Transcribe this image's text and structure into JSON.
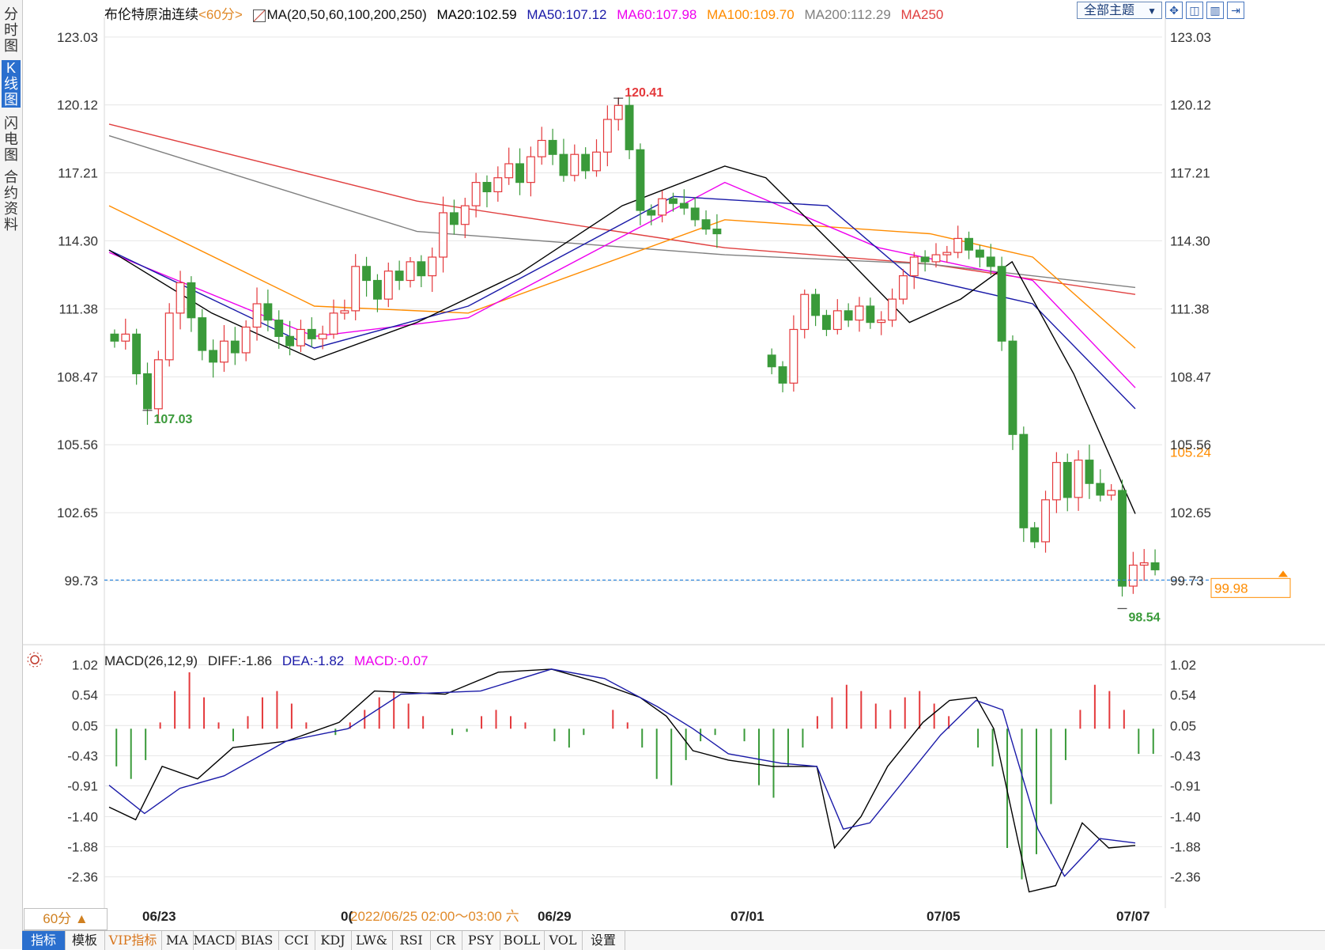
{
  "sidebar": {
    "tabs": [
      {
        "label": "分时图",
        "active": false
      },
      {
        "label": "K线图",
        "active": true
      },
      {
        "label": "闪电图",
        "active": false
      },
      {
        "label": "合约资料",
        "active": false
      }
    ]
  },
  "header": {
    "title": "布伦特原油连续",
    "period_tag": "<60分>",
    "ma_label": "MA(20,50,60,100,200,250)",
    "ma20": "MA20:102.59",
    "ma50": "MA50:107.12",
    "ma60": "MA60:107.98",
    "ma100": "MA100:109.70",
    "ma200": "MA200:112.29",
    "ma250": "MA250",
    "theme_select": "全部主题",
    "icons": [
      "settings-icon",
      "layout-1-icon",
      "layout-2-icon",
      "layout-3-icon"
    ]
  },
  "colors": {
    "up": "#e4393c",
    "down": "#3a9a3a",
    "ma20": "#000000",
    "ma50": "#1a1aa8",
    "ma60": "#ee00ee",
    "ma100": "#ff8c00",
    "ma200": "#808080",
    "ma250": "#e04040",
    "grid": "#e6e6e6",
    "current": "#2080e0"
  },
  "price_axis": {
    "ticks": [
      "123.03",
      "120.12",
      "117.21",
      "114.30",
      "111.38",
      "108.47",
      "105.56",
      "102.65",
      "99.73"
    ],
    "ylim": [
      97.5,
      123.6
    ]
  },
  "annotations": {
    "high": "120.41",
    "low_left": "107.03",
    "low_right": "98.54",
    "current_price": "99.98",
    "right_label": "105.24"
  },
  "macd": {
    "label": "MACD(26,12,9)",
    "diff": "DIFF:-1.86",
    "dea": "DEA:-1.82",
    "macd": "MACD:-0.07",
    "ticks": [
      "1.02",
      "0.54",
      "0.05",
      "-0.43",
      "-0.91",
      "-1.40",
      "-1.88",
      "-2.36"
    ],
    "ylim": [
      -2.82,
      1.15
    ]
  },
  "time_axis": {
    "labels": [
      "06/23",
      "0(",
      "06/29",
      "07/01",
      "07/05",
      "07/07"
    ],
    "hover": "2022/06/25 02:00～03:00 六"
  },
  "period_button": "60分 ▲",
  "bottom_tabs": [
    {
      "label": "指标",
      "active": true
    },
    {
      "label": "模板"
    },
    {
      "label": "VIP指标",
      "vip": true
    },
    {
      "label": "MA"
    },
    {
      "label": "MACD"
    },
    {
      "label": "BIAS"
    },
    {
      "label": "CCI"
    },
    {
      "label": "KDJ"
    },
    {
      "label": "LW&"
    },
    {
      "label": "RSI"
    },
    {
      "label": "CR"
    },
    {
      "label": "PSY"
    },
    {
      "label": "BOLL"
    },
    {
      "label": "VOL"
    },
    {
      "label": "设置"
    }
  ],
  "chart_data": {
    "type": "candlestick",
    "title": "布伦特原油连续",
    "interval": "60分",
    "ylim": [
      97.5,
      123.6
    ],
    "close_path": [
      110.0,
      110.3,
      108.6,
      107.1,
      109.2,
      111.2,
      112.5,
      111.0,
      109.6,
      109.1,
      110.0,
      109.5,
      110.6,
      111.6,
      110.9,
      110.2,
      109.8,
      110.5,
      110.1,
      110.3,
      111.2,
      111.3,
      113.2,
      112.6,
      111.8,
      113.0,
      112.6,
      113.4,
      112.8,
      113.6,
      115.5,
      115.0,
      115.8,
      116.8,
      116.4,
      117.0,
      117.6,
      116.8,
      117.9,
      118.6,
      118.0,
      117.1,
      118.0,
      117.3,
      118.1,
      119.5,
      120.1,
      118.2,
      115.6,
      115.4,
      116.1,
      115.9,
      115.7,
      115.2,
      114.8,
      114.6,
      null,
      null,
      null,
      null,
      108.9,
      108.2,
      110.5,
      112.0,
      111.1,
      110.5,
      111.3,
      110.9,
      111.5,
      110.8,
      110.9,
      111.8,
      112.8,
      113.6,
      113.4,
      113.7,
      113.8,
      114.4,
      113.9,
      113.6,
      113.2,
      110.0,
      106.0,
      102.0,
      101.4,
      103.2,
      104.8,
      103.3,
      104.9,
      103.9,
      103.4,
      103.6,
      99.5,
      100.4,
      100.5,
      100.2
    ],
    "ma20": [
      [
        0.0,
        113.9
      ],
      [
        0.1,
        111.2
      ],
      [
        0.2,
        109.2
      ],
      [
        0.3,
        110.8
      ],
      [
        0.4,
        112.9
      ],
      [
        0.5,
        115.8
      ],
      [
        0.6,
        117.5
      ],
      [
        0.64,
        117.0
      ],
      [
        0.72,
        113.5
      ],
      [
        0.78,
        110.8
      ],
      [
        0.83,
        111.8
      ],
      [
        0.88,
        113.4
      ],
      [
        0.94,
        108.6
      ],
      [
        1.0,
        102.6
      ]
    ],
    "ma50": [
      [
        0.0,
        113.9
      ],
      [
        0.2,
        109.7
      ],
      [
        0.35,
        111.5
      ],
      [
        0.55,
        116.2
      ],
      [
        0.7,
        115.8
      ],
      [
        0.78,
        112.8
      ],
      [
        0.9,
        111.6
      ],
      [
        1.0,
        107.1
      ]
    ],
    "ma60": [
      [
        0.0,
        113.8
      ],
      [
        0.2,
        110.2
      ],
      [
        0.35,
        111.0
      ],
      [
        0.6,
        116.8
      ],
      [
        0.75,
        114.0
      ],
      [
        0.9,
        112.6
      ],
      [
        1.0,
        108.0
      ]
    ],
    "ma100": [
      [
        0.0,
        115.8
      ],
      [
        0.2,
        111.5
      ],
      [
        0.35,
        111.2
      ],
      [
        0.6,
        115.2
      ],
      [
        0.8,
        114.6
      ],
      [
        0.9,
        113.6
      ],
      [
        1.0,
        109.7
      ]
    ],
    "ma200": [
      [
        0.0,
        118.8
      ],
      [
        0.3,
        114.7
      ],
      [
        0.6,
        113.7
      ],
      [
        0.8,
        113.3
      ],
      [
        1.0,
        112.3
      ]
    ],
    "ma250": [
      [
        0.0,
        119.3
      ],
      [
        0.3,
        116.0
      ],
      [
        0.6,
        114.0
      ],
      [
        0.8,
        113.3
      ],
      [
        1.0,
        112.0
      ]
    ],
    "macd_hist": [
      -0.6,
      -0.8,
      -0.5,
      0.1,
      0.6,
      0.9,
      0.5,
      0.1,
      -0.2,
      0.2,
      0.5,
      0.6,
      0.4,
      0.1,
      0.0,
      -0.1,
      0.1,
      0.3,
      0.5,
      0.6,
      0.4,
      0.2,
      0.0,
      -0.1,
      -0.05,
      0.2,
      0.3,
      0.2,
      0.1,
      0.0,
      -0.2,
      -0.3,
      -0.1,
      0.0,
      0.3,
      0.1,
      -0.3,
      -0.8,
      -0.9,
      -0.5,
      -0.2,
      -0.1,
      0.0,
      -0.2,
      -0.9,
      -1.1,
      -0.6,
      -0.3,
      0.2,
      0.5,
      0.7,
      0.6,
      0.4,
      0.3,
      0.5,
      0.6,
      0.4,
      0.2,
      0.0,
      -0.3,
      -0.6,
      -1.9,
      -2.4,
      -2.0,
      -1.2,
      -0.5,
      0.3,
      0.7,
      0.6,
      0.3,
      -0.4,
      -0.4
    ],
    "diff": [
      [
        0.0,
        -1.25
      ],
      [
        0.03,
        -1.45
      ],
      [
        0.06,
        -0.6
      ],
      [
        0.1,
        -0.8
      ],
      [
        0.14,
        -0.3
      ],
      [
        0.2,
        -0.2
      ],
      [
        0.26,
        0.1
      ],
      [
        0.3,
        0.6
      ],
      [
        0.38,
        0.55
      ],
      [
        0.44,
        0.9
      ],
      [
        0.5,
        0.95
      ],
      [
        0.55,
        0.75
      ],
      [
        0.6,
        0.5
      ],
      [
        0.63,
        0.2
      ],
      [
        0.66,
        -0.35
      ],
      [
        0.7,
        -0.5
      ],
      [
        0.75,
        -0.6
      ],
      [
        0.8,
        -0.6
      ],
      [
        0.82,
        -1.9
      ],
      [
        0.85,
        -1.4
      ],
      [
        0.88,
        -0.6
      ],
      [
        0.92,
        0.1
      ],
      [
        0.95,
        0.45
      ],
      [
        0.98,
        0.5
      ],
      [
        1.0,
        0.0
      ],
      [
        1.04,
        -2.6
      ],
      [
        1.07,
        -2.5
      ],
      [
        1.1,
        -1.5
      ],
      [
        1.13,
        -1.9
      ],
      [
        1.16,
        -1.86
      ]
    ],
    "dea": [
      [
        0.0,
        -0.9
      ],
      [
        0.04,
        -1.35
      ],
      [
        0.08,
        -0.95
      ],
      [
        0.13,
        -0.75
      ],
      [
        0.2,
        -0.2
      ],
      [
        0.27,
        0.0
      ],
      [
        0.33,
        0.55
      ],
      [
        0.42,
        0.6
      ],
      [
        0.5,
        0.95
      ],
      [
        0.56,
        0.8
      ],
      [
        0.62,
        0.35
      ],
      [
        0.66,
        0.0
      ],
      [
        0.7,
        -0.4
      ],
      [
        0.76,
        -0.55
      ],
      [
        0.8,
        -0.6
      ],
      [
        0.83,
        -1.6
      ],
      [
        0.86,
        -1.5
      ],
      [
        0.9,
        -0.8
      ],
      [
        0.94,
        -0.1
      ],
      [
        0.98,
        0.45
      ],
      [
        1.01,
        0.3
      ],
      [
        1.05,
        -1.6
      ],
      [
        1.08,
        -2.35
      ],
      [
        1.12,
        -1.75
      ],
      [
        1.16,
        -1.82
      ]
    ]
  }
}
